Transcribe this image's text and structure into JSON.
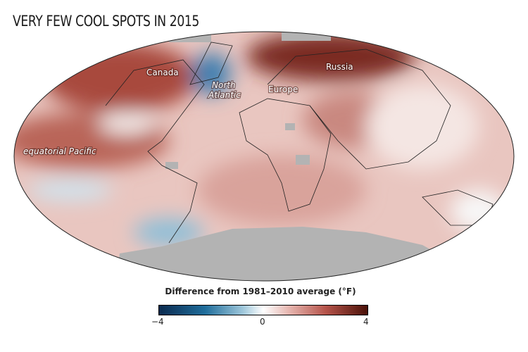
{
  "title": "VERY FEW COOL SPOTS IN 2015",
  "map_labels": {
    "canada": "Canada",
    "north_atlantic_1": "North",
    "north_atlantic_2": "Atlantic",
    "europe": "Europe",
    "russia": "Russia",
    "equatorial_pacific": "equatorial Pacific"
  },
  "legend": {
    "title": "Difference from 1981–2010 average (°F)",
    "min_label": "−4",
    "mid_label": "0",
    "max_label": "4",
    "colors": {
      "cold": "#0b2a4f",
      "neutral": "#ffffff",
      "warm": "#4a1108"
    }
  }
}
